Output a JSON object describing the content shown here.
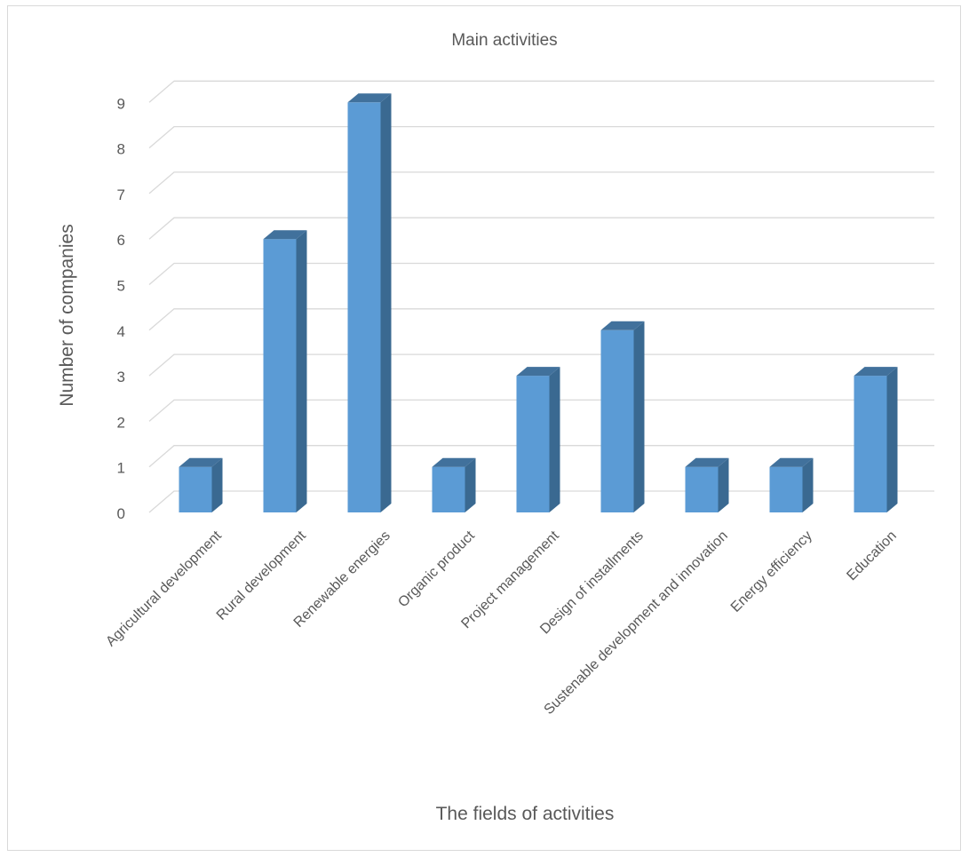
{
  "chart_data": {
    "type": "bar",
    "title": "Main activities",
    "xlabel": "The fields of activities",
    "ylabel": "Number of companies",
    "categories": [
      "Agricultural development",
      "Rural development",
      "Renewable energies",
      "Organic product",
      "Project management",
      "Design of installments",
      "Sustenable development and innovation",
      "Energy efficiency",
      "Education"
    ],
    "values": [
      1,
      6,
      9,
      1,
      3,
      4,
      1,
      1,
      3
    ],
    "ylim": [
      0,
      9
    ],
    "yticks": [
      "0",
      "1",
      "2",
      "3",
      "4",
      "5",
      "6",
      "7",
      "8",
      "9"
    ],
    "grid": true,
    "legend": "none",
    "colors": {
      "bar_front": "#5b9bd5",
      "bar_side": "#3a6991",
      "bar_top": "#41719c",
      "grid": "#d9d9d9",
      "text": "#595959"
    }
  }
}
